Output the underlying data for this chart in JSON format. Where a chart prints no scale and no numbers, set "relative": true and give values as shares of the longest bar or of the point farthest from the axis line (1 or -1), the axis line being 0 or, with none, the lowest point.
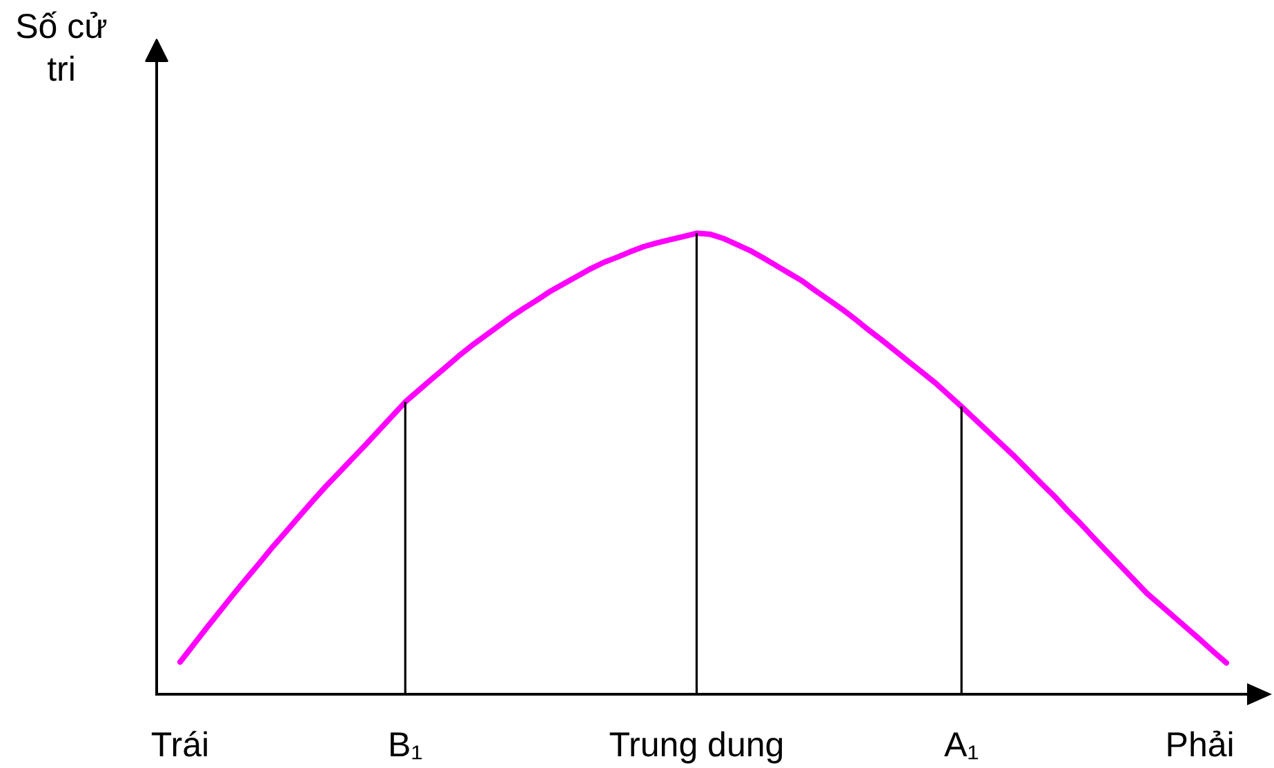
{
  "chart_data": {
    "type": "line",
    "relative": true,
    "ylabel": "Số cử tri",
    "categories": [
      "Trái",
      null,
      null,
      null,
      null,
      null,
      null,
      null,
      null,
      null,
      null,
      null,
      null,
      null,
      null,
      null,
      null,
      "B₁",
      null,
      null,
      null,
      null,
      null,
      null,
      null,
      null,
      null,
      null,
      null,
      null,
      null,
      null,
      null,
      null,
      null,
      null,
      null,
      null,
      null,
      "Trung dung",
      null,
      null,
      null,
      null,
      null,
      null,
      null,
      null,
      null,
      null,
      null,
      null,
      null,
      null,
      null,
      null,
      null,
      null,
      null,
      "A₁",
      null,
      null,
      null,
      null,
      null,
      null,
      null,
      null,
      null,
      null,
      null,
      null,
      null,
      null,
      null,
      null,
      null,
      "Phải",
      null,
      null
    ],
    "series": [
      {
        "color": "#ff00ff",
        "values": [
          0.07,
          0.107,
          0.144,
          0.18,
          0.216,
          0.251,
          0.285,
          0.32,
          0.353,
          0.386,
          0.419,
          0.451,
          0.481,
          0.511,
          0.541,
          0.572,
          0.603,
          0.634,
          0.659,
          0.684,
          0.708,
          0.733,
          0.756,
          0.777,
          0.798,
          0.819,
          0.838,
          0.856,
          0.875,
          0.891,
          0.907,
          0.923,
          0.937,
          0.948,
          0.96,
          0.971,
          0.979,
          0.986,
          0.993,
          1,
          0.998,
          0.989,
          0.976,
          0.963,
          0.947,
          0.93,
          0.913,
          0.896,
          0.875,
          0.855,
          0.835,
          0.813,
          0.79,
          0.768,
          0.745,
          0.722,
          0.699,
          0.676,
          0.65,
          0.624,
          0.597,
          0.57,
          0.543,
          0.516,
          0.487,
          0.458,
          0.43,
          0.399,
          0.37,
          0.339,
          0.309,
          0.279,
          0.249,
          0.219,
          0.194,
          0.169,
          0.144,
          0.119,
          0.093,
          0.068
        ]
      }
    ],
    "ref_lines": [
      {
        "axis": "x",
        "value": "B₁",
        "color": "#000000"
      },
      {
        "axis": "x",
        "value": "Trung dung",
        "color": "#000000"
      },
      {
        "axis": "x",
        "value": "A₁",
        "color": "#000000"
      }
    ]
  }
}
